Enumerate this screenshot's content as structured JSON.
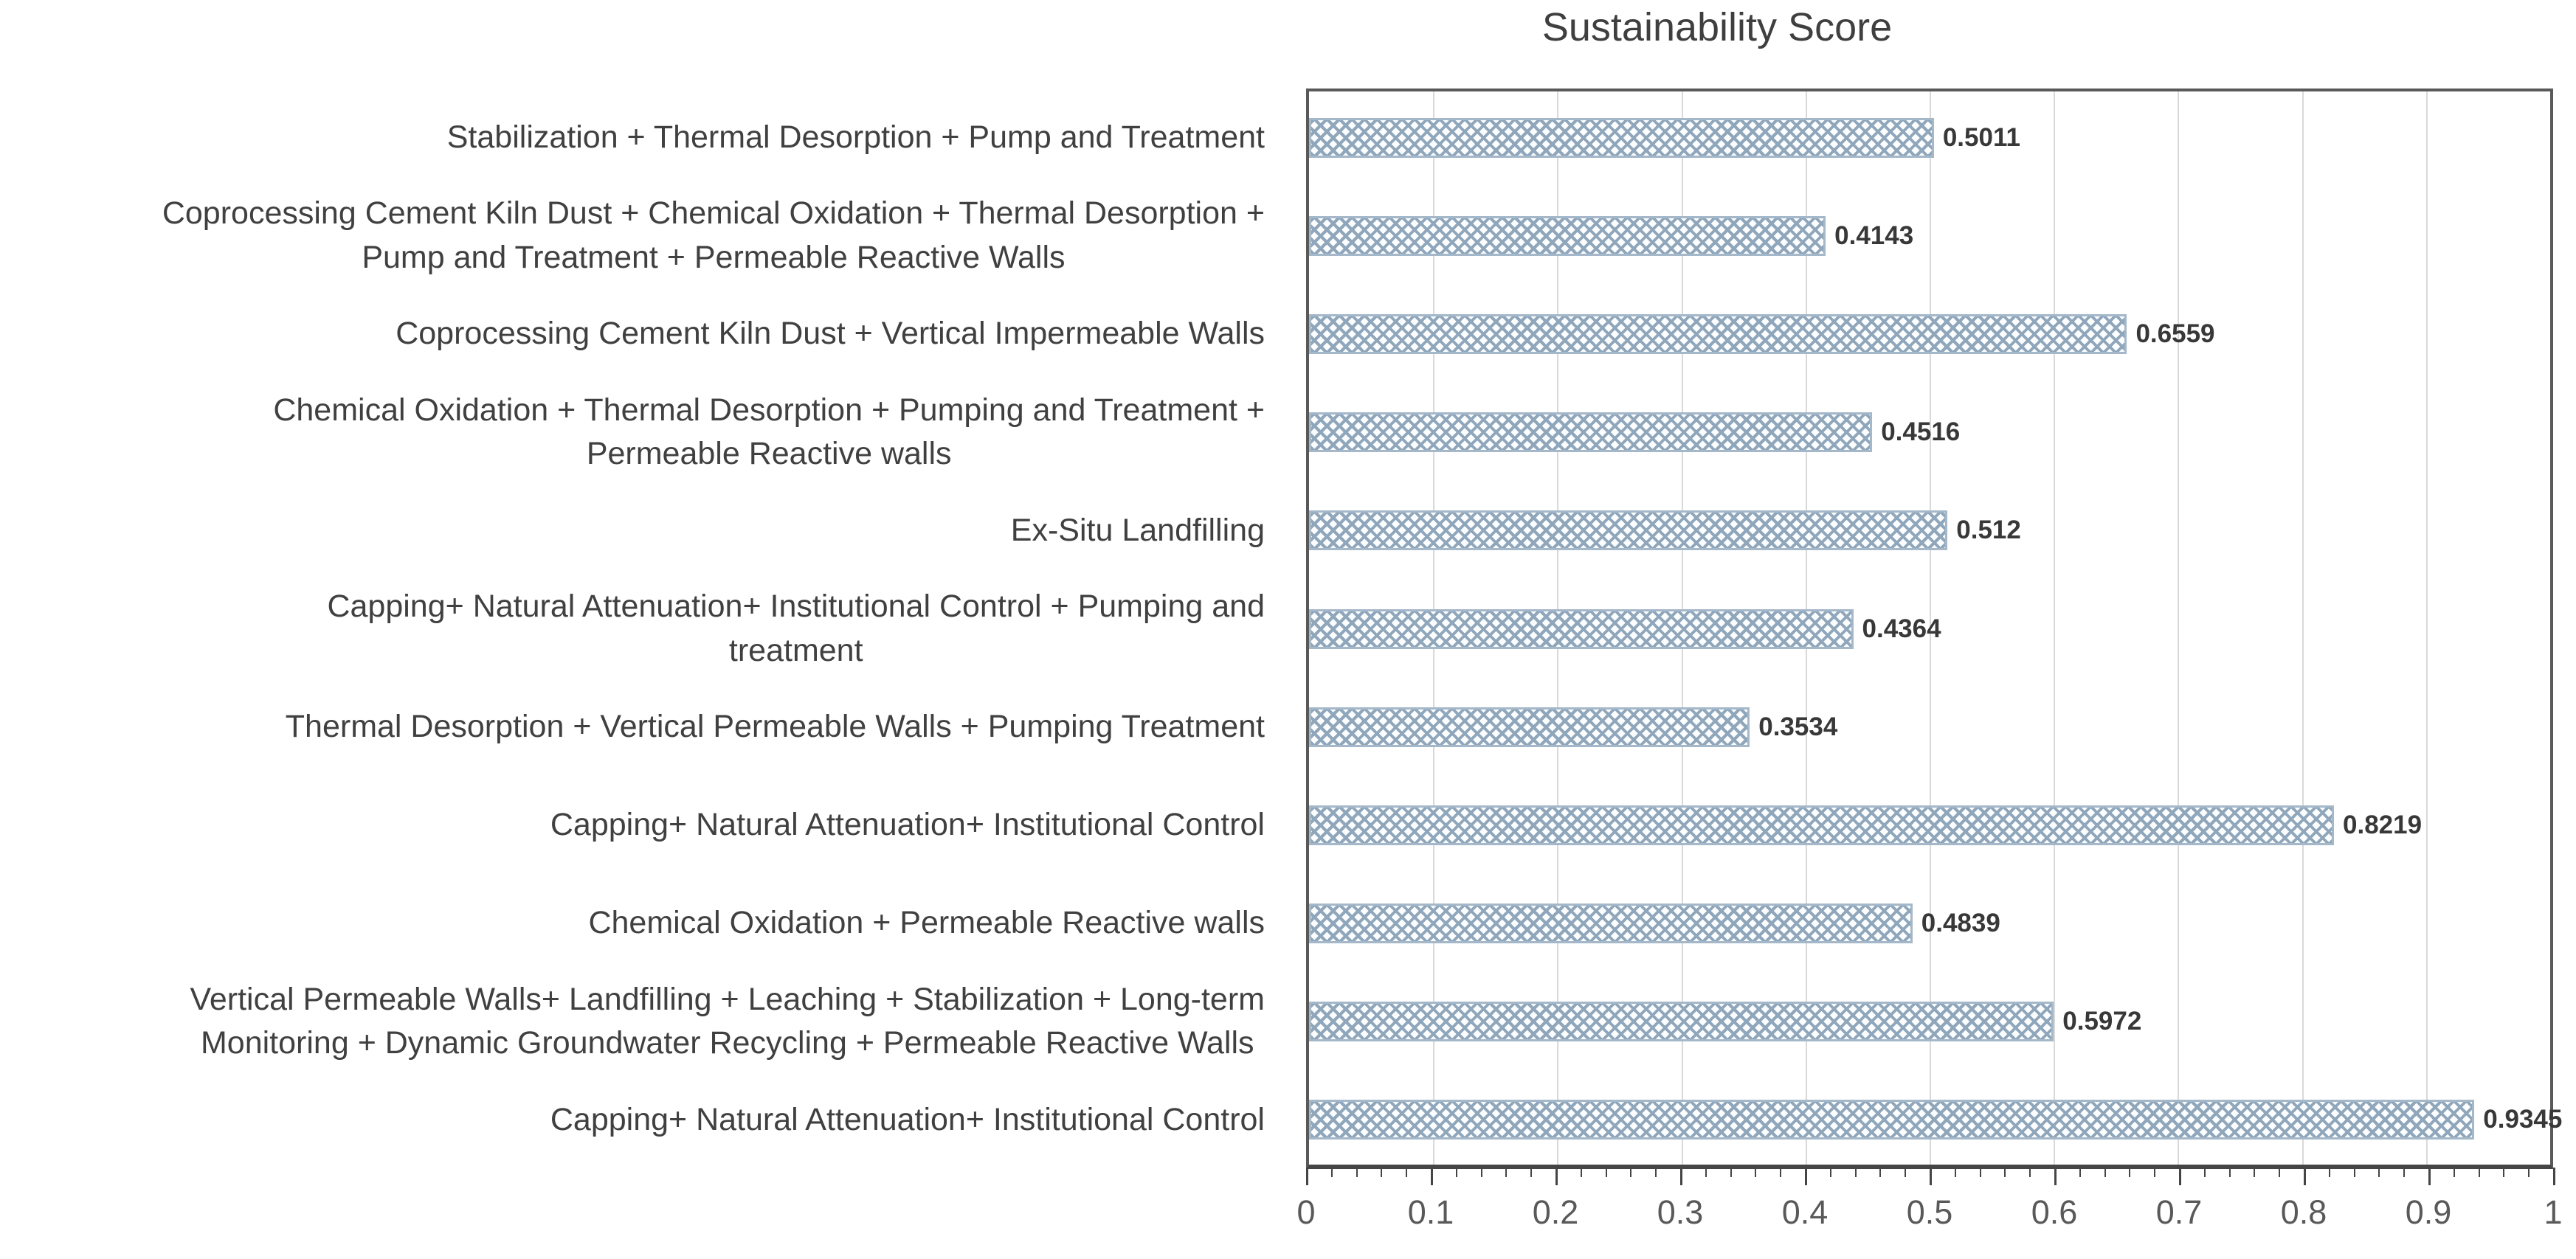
{
  "chart_data": {
    "type": "bar",
    "orientation": "horizontal",
    "title": "Sustainability Score",
    "categories": [
      "Stabilization + Thermal Desorption + Pump and Treatment",
      "Coprocessing Cement Kiln Dust + Chemical Oxidation + Thermal Desorption +\nPump and Treatment + Permeable Reactive Walls",
      "Coprocessing Cement Kiln Dust + Vertical Impermeable Walls",
      "Chemical Oxidation + Thermal Desorption + Pumping and Treatment +\nPermeable Reactive walls",
      "Ex-Situ Landfilling",
      "Capping+ Natural Attenuation+ Institutional Control + Pumping and\ntreatment",
      "Thermal Desorption + Vertical Permeable Walls + Pumping Treatment",
      "Capping+ Natural Attenuation+ Institutional Control",
      "Chemical Oxidation + Permeable Reactive walls",
      "Vertical Permeable Walls+ Landfilling + Leaching + Stabilization + Long-term\nMonitoring + Dynamic Groundwater Recycling + Permeable Reactive Walls",
      "Capping+ Natural Attenuation+ Institutional Control"
    ],
    "values": [
      0.5011,
      0.4143,
      0.6559,
      0.4516,
      0.512,
      0.4364,
      0.3534,
      0.8219,
      0.4839,
      0.5972,
      0.9345
    ],
    "value_labels": [
      "0.5011",
      "0.4143",
      "0.6559",
      "0.4516",
      "0.512",
      "0.4364",
      "0.3534",
      "0.8219",
      "0.4839",
      "0.5972",
      "0.9345"
    ],
    "xlabel": "",
    "ylabel": "",
    "xlim": [
      0,
      1
    ],
    "x_major_tick_step": 0.1,
    "x_minor_tick_step": 0.02,
    "x_tick_labels": [
      "0",
      "0.1",
      "0.2",
      "0.3",
      "0.4",
      "0.5",
      "0.6",
      "0.7",
      "0.8",
      "0.9",
      "1"
    ],
    "grid": true,
    "legend": false,
    "bar_pattern": "diagonal-crosshatch",
    "colors": {
      "background": "#ffffff",
      "title_text": "#3f3f3f",
      "category_text": "#404040",
      "value_text": "#383838",
      "tick_text": "#595959",
      "gridline": "#d9d9d9",
      "plot_border": "#595959",
      "axis_line": "#454545",
      "bar_lattice": "#8fa6bb",
      "bar_fill": "#fbfdfe",
      "bar_border": "#a5b8ca"
    }
  }
}
